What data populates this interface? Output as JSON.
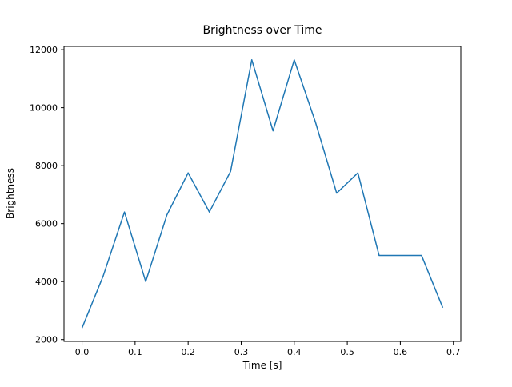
{
  "chart_data": {
    "type": "line",
    "title": "Brightness over Time",
    "xlabel": "Time [s]",
    "ylabel": "Brightness",
    "line_color": "#1f77b4",
    "background_color": "#ffffff",
    "grid": false,
    "legend": null,
    "xlim": [
      -0.034,
      0.714
    ],
    "ylim": [
      1937,
      12113
    ],
    "xticks": [
      0.0,
      0.1,
      0.2,
      0.3,
      0.4,
      0.5,
      0.6,
      0.7
    ],
    "yticks": [
      2000,
      4000,
      6000,
      8000,
      10000,
      12000
    ],
    "x": [
      0.0,
      0.04,
      0.08,
      0.12,
      0.16,
      0.2,
      0.24,
      0.28,
      0.32,
      0.36,
      0.4,
      0.44,
      0.48,
      0.52,
      0.56,
      0.6,
      0.64,
      0.68
    ],
    "y": [
      2400,
      4200,
      6400,
      4000,
      6300,
      7750,
      6400,
      7800,
      11650,
      9200,
      11650,
      9500,
      7050,
      7750,
      4900,
      4900,
      4900,
      3100
    ]
  }
}
